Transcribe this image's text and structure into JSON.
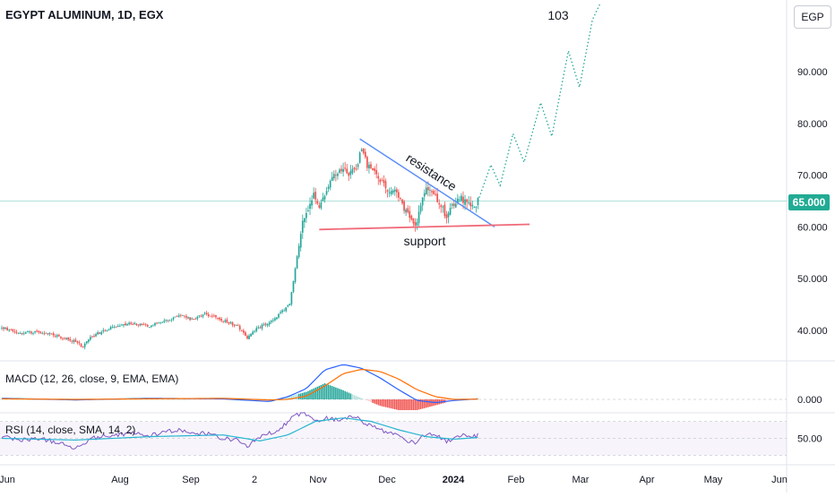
{
  "header": {
    "title": "EGYPT ALUMINUM, 1D, EGX",
    "currency": "EGP"
  },
  "price_badge": "65.000",
  "annotations": {
    "target": "103",
    "resistance": "resistance",
    "support": "support"
  },
  "macd": {
    "label": "MACD (12, 26, close, 9, EMA, EMA)",
    "tick": "0.000"
  },
  "rsi": {
    "label": "RSI (14, close, SMA, 14, 2)",
    "tick": "50.00"
  },
  "colors": {
    "up": "#26a69a",
    "down": "#ef5350",
    "resistance_line": "#5b8ff9",
    "support_line": "#f06b7a",
    "projection": "#26a69a",
    "macd_line": "#2962ff",
    "signal_line": "#ff6d00",
    "rsi_line": "#7e57c2",
    "rsi_ma": "#26b5d1",
    "price_badge": "#22ab94"
  },
  "chart_data": {
    "type": "candlestick",
    "price_axis": {
      "ticks": [
        "40.000",
        "50.000",
        "60.000",
        "70.000",
        "80.000",
        "90.000"
      ],
      "range": [
        32,
        107
      ]
    },
    "time_axis": {
      "ticks": [
        "Jun",
        "Aug",
        "Sep",
        "2",
        "Nov",
        "Dec",
        "2024",
        "Feb",
        "Mar",
        "Apr",
        "May",
        "Jun"
      ]
    },
    "current_price": 65,
    "trend": [
      [
        0,
        40.5
      ],
      [
        10,
        39.5
      ],
      [
        20,
        39.8
      ],
      [
        30,
        39.0
      ],
      [
        40,
        37.8
      ],
      [
        44,
        36.8
      ],
      [
        48,
        38.8
      ],
      [
        60,
        40.6
      ],
      [
        70,
        41.3
      ],
      [
        80,
        40.9
      ],
      [
        90,
        42.0
      ],
      [
        96,
        43.0
      ],
      [
        103,
        42.1
      ],
      [
        110,
        43.2
      ],
      [
        120,
        42.0
      ],
      [
        128,
        40.8
      ],
      [
        133,
        38.5
      ],
      [
        138,
        40.4
      ],
      [
        145,
        41.5
      ],
      [
        150,
        43.0
      ],
      [
        156,
        45.0
      ],
      [
        159,
        52.0
      ],
      [
        161,
        57.0
      ],
      [
        163,
        61.5
      ],
      [
        166,
        63.5
      ],
      [
        169,
        66.0
      ],
      [
        172,
        63.5
      ],
      [
        176,
        67.5
      ],
      [
        180,
        70.0
      ],
      [
        184,
        70.8
      ],
      [
        188,
        70.3
      ],
      [
        192,
        71.5
      ],
      [
        195,
        75.0
      ],
      [
        198,
        72.0
      ],
      [
        203,
        70.0
      ],
      [
        208,
        67.5
      ],
      [
        213,
        67.0
      ],
      [
        217,
        64.0
      ],
      [
        221,
        62.0
      ],
      [
        224,
        59.8
      ],
      [
        227,
        64.5
      ],
      [
        230,
        67.5
      ],
      [
        234,
        66.5
      ],
      [
        238,
        64.0
      ],
      [
        241,
        62.0
      ],
      [
        244,
        64.0
      ],
      [
        248,
        66.0
      ],
      [
        252,
        64.5
      ],
      [
        256,
        63.5
      ],
      [
        258,
        65.5
      ]
    ],
    "projection_path": [
      [
        258,
        65.0
      ],
      [
        265,
        72.0
      ],
      [
        270,
        68.0
      ],
      [
        277,
        78.0
      ],
      [
        283,
        72.5
      ],
      [
        292,
        84.0
      ],
      [
        298,
        77.5
      ],
      [
        307,
        94.0
      ],
      [
        313,
        87.0
      ],
      [
        320,
        100.0
      ],
      [
        324,
        103.0
      ]
    ],
    "resistance": {
      "from": [
        194,
        77.0
      ],
      "to": [
        267,
        60.0
      ]
    },
    "support": {
      "from": [
        172,
        59.5
      ],
      "to": [
        286,
        60.5
      ]
    },
    "macd_values": [
      [
        0,
        0.2
      ],
      [
        40,
        -0.1
      ],
      [
        80,
        0.2
      ],
      [
        120,
        0.1
      ],
      [
        145,
        -0.4
      ],
      [
        155,
        0.5
      ],
      [
        165,
        2.0
      ],
      [
        175,
        5.5
      ],
      [
        185,
        6.5
      ],
      [
        195,
        5.8
      ],
      [
        205,
        4.0
      ],
      [
        215,
        1.8
      ],
      [
        225,
        -0.2
      ],
      [
        235,
        -0.6
      ],
      [
        245,
        -0.2
      ],
      [
        258,
        0.1
      ]
    ],
    "signal_values": [
      [
        0,
        0.1
      ],
      [
        40,
        0.0
      ],
      [
        80,
        0.1
      ],
      [
        120,
        0.2
      ],
      [
        145,
        -0.1
      ],
      [
        155,
        0.0
      ],
      [
        165,
        0.6
      ],
      [
        175,
        2.5
      ],
      [
        185,
        4.8
      ],
      [
        195,
        5.6
      ],
      [
        205,
        5.2
      ],
      [
        215,
        3.8
      ],
      [
        225,
        1.8
      ],
      [
        235,
        0.5
      ],
      [
        245,
        0.0
      ],
      [
        258,
        0.05
      ]
    ],
    "rsi_values": [
      [
        0,
        52
      ],
      [
        10,
        48
      ],
      [
        20,
        50
      ],
      [
        30,
        45
      ],
      [
        40,
        38
      ],
      [
        48,
        50
      ],
      [
        60,
        54
      ],
      [
        70,
        56
      ],
      [
        80,
        53
      ],
      [
        90,
        58
      ],
      [
        96,
        60
      ],
      [
        103,
        55
      ],
      [
        110,
        56
      ],
      [
        120,
        50
      ],
      [
        128,
        48
      ],
      [
        133,
        40
      ],
      [
        140,
        52
      ],
      [
        150,
        60
      ],
      [
        156,
        72
      ],
      [
        160,
        78
      ],
      [
        164,
        80
      ],
      [
        168,
        74
      ],
      [
        172,
        70
      ],
      [
        176,
        74
      ],
      [
        180,
        72
      ],
      [
        186,
        73
      ],
      [
        192,
        76
      ],
      [
        198,
        66
      ],
      [
        203,
        62
      ],
      [
        208,
        58
      ],
      [
        213,
        56
      ],
      [
        217,
        50
      ],
      [
        221,
        46
      ],
      [
        224,
        45
      ],
      [
        227,
        52
      ],
      [
        232,
        56
      ],
      [
        238,
        50
      ],
      [
        241,
        46
      ],
      [
        245,
        49
      ],
      [
        250,
        53
      ],
      [
        254,
        50
      ],
      [
        258,
        54
      ]
    ],
    "rsi_ma_values": [
      [
        0,
        50
      ],
      [
        40,
        48
      ],
      [
        80,
        52
      ],
      [
        120,
        54
      ],
      [
        140,
        47
      ],
      [
        155,
        54
      ],
      [
        170,
        70
      ],
      [
        185,
        74
      ],
      [
        200,
        70
      ],
      [
        215,
        60
      ],
      [
        230,
        52
      ],
      [
        245,
        49
      ],
      [
        258,
        51
      ]
    ]
  }
}
